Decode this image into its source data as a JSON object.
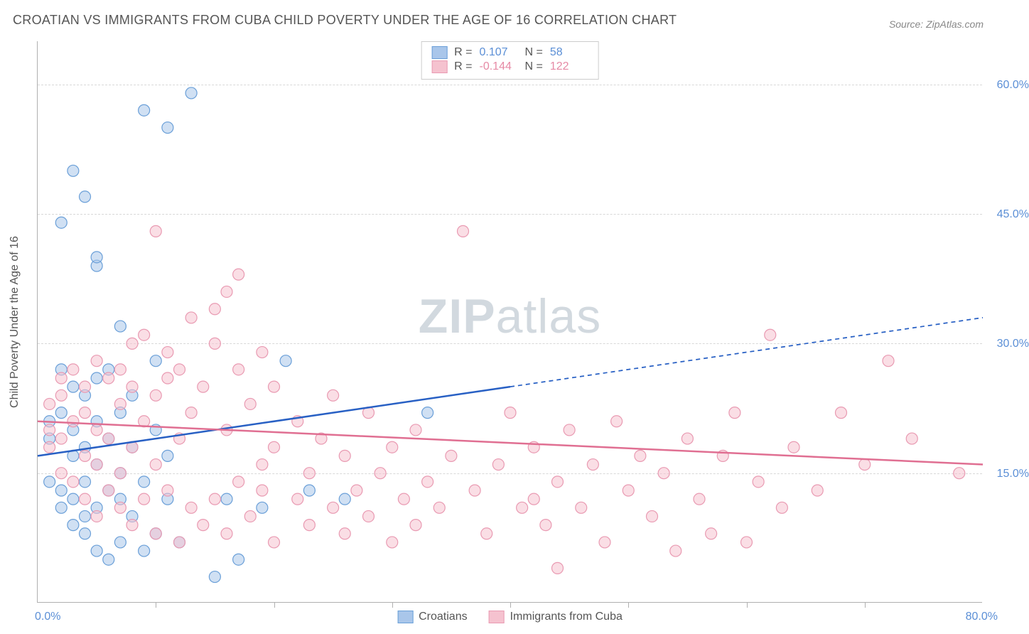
{
  "title": "CROATIAN VS IMMIGRANTS FROM CUBA CHILD POVERTY UNDER THE AGE OF 16 CORRELATION CHART",
  "source": "Source: ZipAtlas.com",
  "y_axis_title": "Child Poverty Under the Age of 16",
  "watermark_bold": "ZIP",
  "watermark_rest": "atlas",
  "chart": {
    "type": "scatter",
    "xlim": [
      0,
      80
    ],
    "ylim": [
      0,
      65
    ],
    "x_label_min": "0.0%",
    "x_label_max": "80.0%",
    "x_ticks": [
      10,
      20,
      30,
      40,
      50,
      60,
      70
    ],
    "y_gridlines": [
      15,
      30,
      45,
      60
    ],
    "y_tick_labels": [
      "15.0%",
      "30.0%",
      "45.0%",
      "60.0%"
    ],
    "background_color": "#ffffff",
    "grid_color": "#d8d8d8",
    "axis_color": "#b0b0b0",
    "marker_radius": 8,
    "marker_stroke_width": 1.2,
    "line_width": 2.5,
    "dash_pattern": "6 5",
    "series": [
      {
        "name": "Croatians",
        "fill_color": "#a9c6ea",
        "stroke_color": "#6a9fd8",
        "line_color": "#2860c4",
        "fill_opacity": 0.55,
        "points": [
          [
            1,
            14
          ],
          [
            1,
            19
          ],
          [
            1,
            21
          ],
          [
            2,
            11
          ],
          [
            2,
            13
          ],
          [
            2,
            22
          ],
          [
            2,
            27
          ],
          [
            2,
            44
          ],
          [
            3,
            9
          ],
          [
            3,
            12
          ],
          [
            3,
            17
          ],
          [
            3,
            20
          ],
          [
            3,
            25
          ],
          [
            3,
            50
          ],
          [
            4,
            8
          ],
          [
            4,
            10
          ],
          [
            4,
            14
          ],
          [
            4,
            18
          ],
          [
            4,
            24
          ],
          [
            4,
            47
          ],
          [
            5,
            6
          ],
          [
            5,
            11
          ],
          [
            5,
            16
          ],
          [
            5,
            21
          ],
          [
            5,
            26
          ],
          [
            5,
            39
          ],
          [
            5,
            40
          ],
          [
            6,
            5
          ],
          [
            6,
            13
          ],
          [
            6,
            19
          ],
          [
            6,
            27
          ],
          [
            7,
            7
          ],
          [
            7,
            12
          ],
          [
            7,
            15
          ],
          [
            7,
            22
          ],
          [
            7,
            32
          ],
          [
            8,
            10
          ],
          [
            8,
            18
          ],
          [
            8,
            24
          ],
          [
            9,
            6
          ],
          [
            9,
            14
          ],
          [
            9,
            57
          ],
          [
            10,
            8
          ],
          [
            10,
            20
          ],
          [
            10,
            28
          ],
          [
            11,
            12
          ],
          [
            11,
            17
          ],
          [
            11,
            55
          ],
          [
            12,
            7
          ],
          [
            13,
            59
          ],
          [
            15,
            3
          ],
          [
            16,
            12
          ],
          [
            17,
            5
          ],
          [
            19,
            11
          ],
          [
            21,
            28
          ],
          [
            23,
            13
          ],
          [
            26,
            12
          ],
          [
            33,
            22
          ]
        ],
        "regression": {
          "x1": 0,
          "y1": 17,
          "x2": 40,
          "y2": 25,
          "extrap_x2": 80,
          "extrap_y2": 33
        }
      },
      {
        "name": "Immigrants from Cuba",
        "fill_color": "#f5c2cf",
        "stroke_color": "#e99ab2",
        "line_color": "#e06f92",
        "fill_opacity": 0.55,
        "points": [
          [
            1,
            18
          ],
          [
            1,
            20
          ],
          [
            1,
            23
          ],
          [
            2,
            15
          ],
          [
            2,
            19
          ],
          [
            2,
            24
          ],
          [
            2,
            26
          ],
          [
            3,
            14
          ],
          [
            3,
            21
          ],
          [
            3,
            27
          ],
          [
            4,
            12
          ],
          [
            4,
            17
          ],
          [
            4,
            22
          ],
          [
            4,
            25
          ],
          [
            5,
            10
          ],
          [
            5,
            16
          ],
          [
            5,
            20
          ],
          [
            5,
            28
          ],
          [
            6,
            13
          ],
          [
            6,
            19
          ],
          [
            6,
            26
          ],
          [
            7,
            11
          ],
          [
            7,
            15
          ],
          [
            7,
            23
          ],
          [
            7,
            27
          ],
          [
            8,
            9
          ],
          [
            8,
            18
          ],
          [
            8,
            25
          ],
          [
            8,
            30
          ],
          [
            9,
            12
          ],
          [
            9,
            21
          ],
          [
            9,
            31
          ],
          [
            10,
            8
          ],
          [
            10,
            16
          ],
          [
            10,
            24
          ],
          [
            10,
            43
          ],
          [
            11,
            13
          ],
          [
            11,
            26
          ],
          [
            11,
            29
          ],
          [
            12,
            7
          ],
          [
            12,
            19
          ],
          [
            12,
            27
          ],
          [
            13,
            11
          ],
          [
            13,
            22
          ],
          [
            13,
            33
          ],
          [
            14,
            9
          ],
          [
            14,
            25
          ],
          [
            15,
            12
          ],
          [
            15,
            34
          ],
          [
            15,
            30
          ],
          [
            16,
            8
          ],
          [
            16,
            20
          ],
          [
            16,
            36
          ],
          [
            17,
            14
          ],
          [
            17,
            27
          ],
          [
            17,
            38
          ],
          [
            18,
            10
          ],
          [
            18,
            23
          ],
          [
            19,
            13
          ],
          [
            19,
            16
          ],
          [
            19,
            29
          ],
          [
            20,
            7
          ],
          [
            20,
            18
          ],
          [
            20,
            25
          ],
          [
            22,
            12
          ],
          [
            22,
            21
          ],
          [
            23,
            9
          ],
          [
            23,
            15
          ],
          [
            24,
            19
          ],
          [
            25,
            11
          ],
          [
            25,
            24
          ],
          [
            26,
            8
          ],
          [
            26,
            17
          ],
          [
            27,
            13
          ],
          [
            28,
            10
          ],
          [
            28,
            22
          ],
          [
            29,
            15
          ],
          [
            30,
            7
          ],
          [
            30,
            18
          ],
          [
            31,
            12
          ],
          [
            32,
            9
          ],
          [
            32,
            20
          ],
          [
            33,
            14
          ],
          [
            34,
            11
          ],
          [
            35,
            17
          ],
          [
            36,
            43
          ],
          [
            37,
            13
          ],
          [
            38,
            8
          ],
          [
            39,
            16
          ],
          [
            40,
            22
          ],
          [
            41,
            11
          ],
          [
            42,
            12
          ],
          [
            42,
            18
          ],
          [
            43,
            9
          ],
          [
            44,
            4
          ],
          [
            44,
            14
          ],
          [
            45,
            20
          ],
          [
            46,
            11
          ],
          [
            47,
            16
          ],
          [
            48,
            7
          ],
          [
            49,
            21
          ],
          [
            50,
            13
          ],
          [
            51,
            17
          ],
          [
            52,
            10
          ],
          [
            53,
            15
          ],
          [
            54,
            6
          ],
          [
            55,
            19
          ],
          [
            56,
            12
          ],
          [
            57,
            8
          ],
          [
            58,
            17
          ],
          [
            59,
            22
          ],
          [
            60,
            7
          ],
          [
            61,
            14
          ],
          [
            62,
            31
          ],
          [
            63,
            11
          ],
          [
            64,
            18
          ],
          [
            66,
            13
          ],
          [
            68,
            22
          ],
          [
            70,
            16
          ],
          [
            72,
            28
          ],
          [
            74,
            19
          ],
          [
            78,
            15
          ]
        ],
        "regression": {
          "x1": 0,
          "y1": 21,
          "x2": 80,
          "y2": 16,
          "extrap_x2": 80,
          "extrap_y2": 16
        }
      }
    ]
  },
  "stats": {
    "rows": [
      {
        "swatch_fill": "#a9c6ea",
        "swatch_stroke": "#6a9fd8",
        "r": "0.107",
        "n": "58",
        "val_class": "val-b"
      },
      {
        "swatch_fill": "#f5c2cf",
        "swatch_stroke": "#e99ab2",
        "r": "-0.144",
        "n": "122",
        "val_class": "val-p"
      }
    ],
    "r_label": "R =",
    "n_label": "N ="
  },
  "legend": {
    "items": [
      {
        "label": "Croatians",
        "swatch_fill": "#a9c6ea",
        "swatch_stroke": "#6a9fd8"
      },
      {
        "label": "Immigrants from Cuba",
        "swatch_fill": "#f5c2cf",
        "swatch_stroke": "#e99ab2"
      }
    ]
  }
}
